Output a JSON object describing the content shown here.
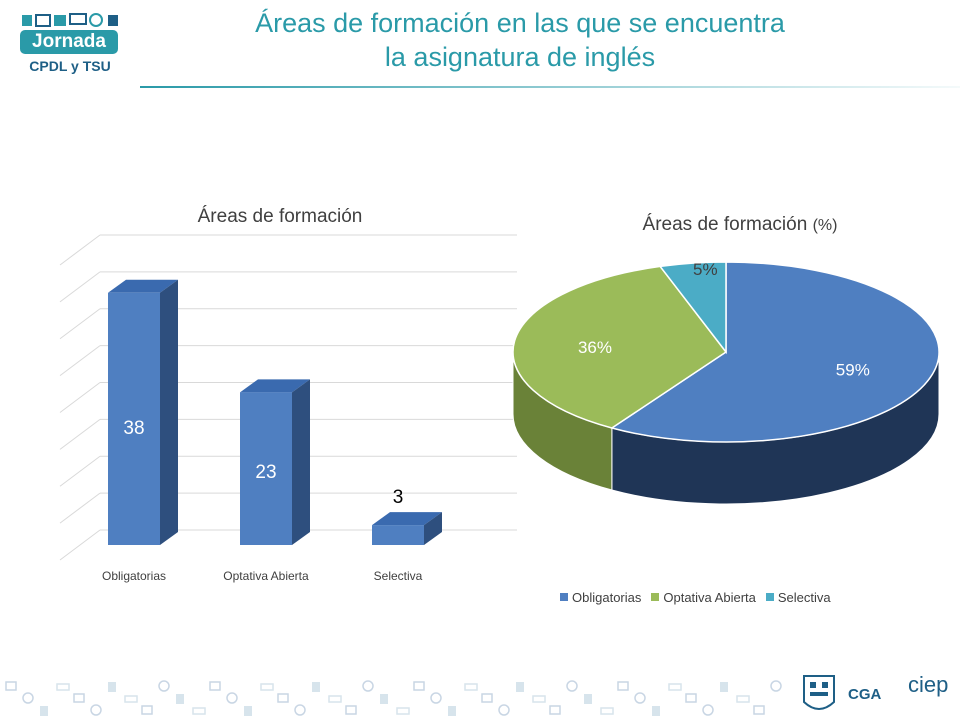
{
  "logo": {
    "top": "Jornada",
    "sub": "CPDL y TSU"
  },
  "page_title_line1": "Áreas de formación en las que se encuentra",
  "page_title_line2": "la asignatura de inglés",
  "colors": {
    "blue": "#4f7fc1",
    "green": "#9bbb59",
    "teal": "#4bacc6",
    "accent": "#2a9aa8"
  },
  "chart_data": [
    {
      "type": "bar",
      "title": "Áreas de formación",
      "categories": [
        "Obligatorias",
        "Optativa Abierta",
        "Selectiva"
      ],
      "values": [
        38,
        23,
        3
      ],
      "ylim": [
        0,
        40
      ],
      "grid": true
    },
    {
      "type": "pie",
      "title": "Áreas de formación",
      "title_unit": "(%)",
      "labels": [
        "Obligatorias",
        "Optativa Abierta",
        "Selectiva"
      ],
      "values": [
        59,
        36,
        5
      ],
      "value_labels": [
        "59%",
        "36%",
        "5%"
      ],
      "legend": "bottom"
    }
  ],
  "footer": {
    "cga": "CGA",
    "ciep": "ciep"
  }
}
